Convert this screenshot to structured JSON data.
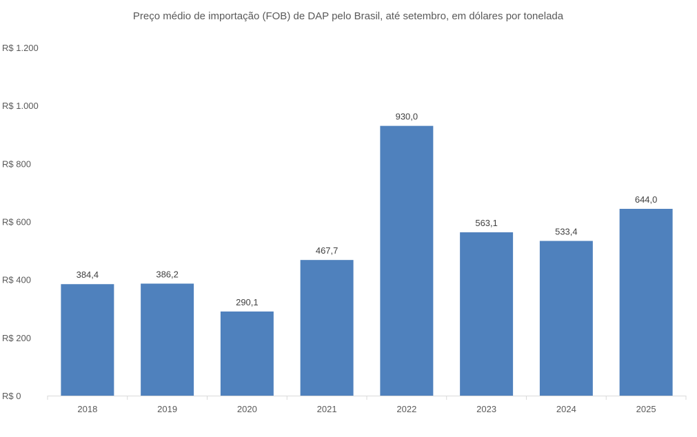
{
  "chart_data": {
    "type": "bar",
    "title": "Preço médio de importação (FOB) de DAP pelo Brasil, até setembro, em dólares por tonelada",
    "xlabel": "",
    "ylabel": "",
    "categories": [
      "2018",
      "2019",
      "2020",
      "2021",
      "2022",
      "2023",
      "2024",
      "2025"
    ],
    "values": [
      384.4,
      386.2,
      290.1,
      467.7,
      930.0,
      563.1,
      533.4,
      644.0
    ],
    "data_labels": [
      "384,4",
      "386,2",
      "290,1",
      "467,7",
      "930,0",
      "563,1",
      "533,4",
      "644,0"
    ],
    "ylim": [
      0,
      1200
    ],
    "yticks": [
      0,
      200,
      400,
      600,
      800,
      1000,
      1200
    ],
    "ytick_labels": [
      "R$ 0",
      "R$ 200",
      "R$ 400",
      "R$ 600",
      "R$ 800",
      "R$ 1.000",
      "R$ 1.200"
    ],
    "grid": false,
    "legend": "none",
    "colors": {
      "bar": "#4F81BD",
      "text": "#595959",
      "axis": "#D9D9D9"
    }
  }
}
